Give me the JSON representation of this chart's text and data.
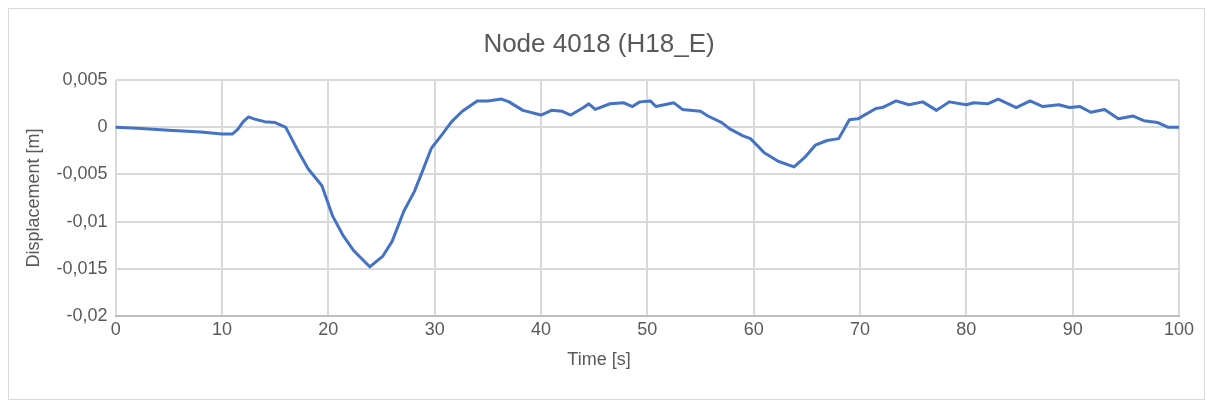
{
  "chart_data": {
    "type": "line",
    "title": "Node 4018 (H18_E)",
    "xlabel": "Time [s]",
    "ylabel": "Displacement [m]",
    "xlim": [
      0,
      100
    ],
    "xticks": [
      0,
      10,
      20,
      30,
      40,
      50,
      60,
      70,
      80,
      90,
      100
    ],
    "ylim": [
      -0.02,
      0.005
    ],
    "yticks": [
      {
        "value": -0.02,
        "label": "-0,02"
      },
      {
        "value": -0.015,
        "label": "-0,015"
      },
      {
        "value": -0.01,
        "label": "-0,01"
      },
      {
        "value": -0.005,
        "label": "-0,005"
      },
      {
        "value": 0,
        "label": "0"
      },
      {
        "value": 0.005,
        "label": "0,005"
      }
    ],
    "grid": true,
    "legend": false,
    "marker": "none",
    "line_style": "solid",
    "series": [
      {
        "color": "#4472c4",
        "x": [
          0,
          2,
          5,
          8,
          10,
          11,
          11.5,
          12,
          12.5,
          13,
          14,
          15,
          16,
          17.2,
          18.1,
          19.4,
          20.4,
          21.4,
          22.4,
          23.9,
          25.1,
          26,
          27.1,
          28.1,
          28.7,
          29.7,
          30.6,
          31.6,
          32.6,
          34,
          35,
          36.3,
          37,
          38.3,
          40,
          41,
          42,
          42.8,
          44,
          44.5,
          45.1,
          46.5,
          47.8,
          48.6,
          49.3,
          50.3,
          50.8,
          52.5,
          53.3,
          55,
          55.7,
          57,
          57.8,
          59,
          59.7,
          61,
          62.3,
          63.8,
          64.8,
          65.8,
          66.9,
          68,
          69,
          69.8,
          71.5,
          72.1,
          73.4,
          74.6,
          75.9,
          77.2,
          78.4,
          80,
          80.7,
          82,
          83,
          84.7,
          86,
          87.2,
          88.7,
          89.7,
          90.7,
          91.7,
          93,
          94.3,
          95.7,
          96.7,
          98,
          99,
          100
        ],
        "values": [
          0,
          -0.0001,
          -0.0003,
          -0.0005,
          -0.0007,
          -0.0007,
          -0.0002,
          0.0006,
          0.0011,
          0.0009,
          0.0006,
          0.0005,
          0,
          -0.0026,
          -0.0044,
          -0.0062,
          -0.0094,
          -0.0115,
          -0.0131,
          -0.0148,
          -0.0137,
          -0.0121,
          -0.0089,
          -0.0068,
          -0.0051,
          -0.0022,
          -0.0009,
          0.0006,
          0.0017,
          0.0028,
          0.0028,
          0.003,
          0.0027,
          0.0018,
          0.0013,
          0.0018,
          0.0017,
          0.0013,
          0.0021,
          0.0025,
          0.0019,
          0.0025,
          0.0026,
          0.0022,
          0.0027,
          0.0028,
          0.0022,
          0.0026,
          0.0019,
          0.0017,
          0.0012,
          0.0005,
          -0.0002,
          -0.0009,
          -0.0012,
          -0.0027,
          -0.0036,
          -0.0042,
          -0.0032,
          -0.0019,
          -0.0014,
          -0.0012,
          0.0008,
          0.0009,
          0.002,
          0.0021,
          0.0028,
          0.0024,
          0.0027,
          0.0018,
          0.0027,
          0.0024,
          0.0026,
          0.0025,
          0.003,
          0.0021,
          0.0028,
          0.0022,
          0.0024,
          0.0021,
          0.0022,
          0.0016,
          0.0019,
          0.0009,
          0.0012,
          0.0007,
          0.0005,
          0,
          0
        ]
      }
    ]
  }
}
